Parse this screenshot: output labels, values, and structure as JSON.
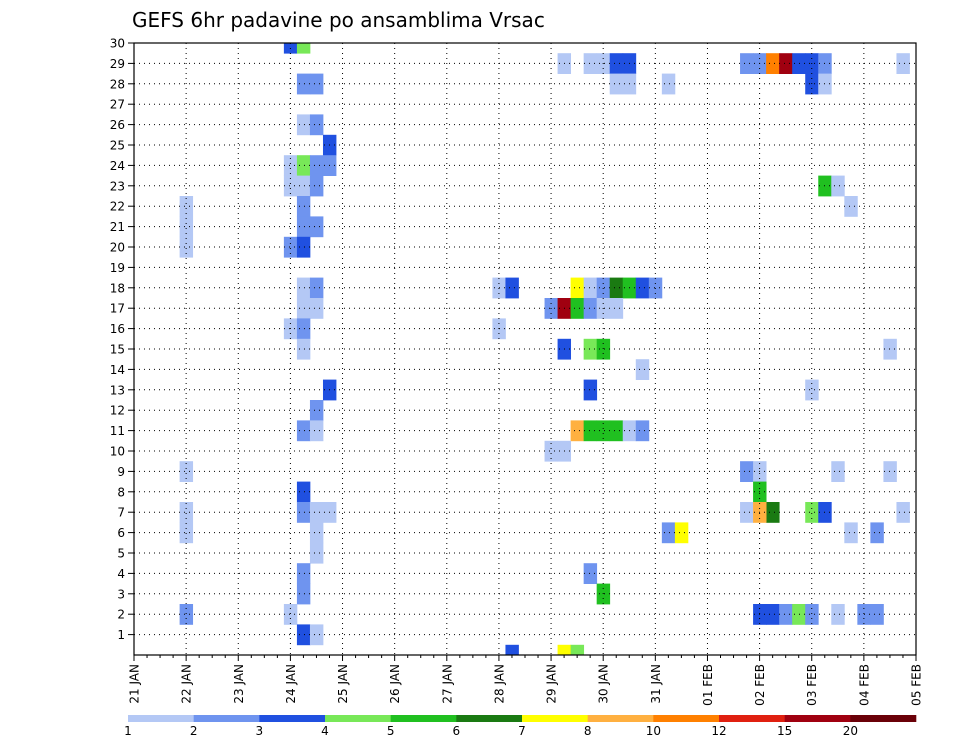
{
  "chart_data": {
    "type": "heatmap",
    "title": "GEFS 6hr padavine po ansamblima Vrsac",
    "xlabel": "",
    "ylabel": "",
    "x_start": "21 JAN",
    "x_step_hours": 6,
    "x_ticks": [
      "21 JAN",
      "22 JAN",
      "23 JAN",
      "24 JAN",
      "25 JAN",
      "26 JAN",
      "27 JAN",
      "28 JAN",
      "29 JAN",
      "30 JAN",
      "31 JAN",
      "01 FEB",
      "02 FEB",
      "03 FEB",
      "04 FEB",
      "05 FEB"
    ],
    "y_ticks": [
      "1",
      "2",
      "3",
      "4",
      "5",
      "6",
      "7",
      "8",
      "9",
      "10",
      "11",
      "12",
      "13",
      "14",
      "15",
      "16",
      "17",
      "18",
      "19",
      "20",
      "21",
      "22",
      "23",
      "24",
      "25",
      "26",
      "27",
      "28",
      "29",
      "30"
    ],
    "ylim": [
      0,
      30
    ],
    "grid": true,
    "legend": {
      "placement": "bottom",
      "labels": [
        "1",
        "2",
        "3",
        "4",
        "5",
        "6",
        "7",
        "8",
        "10",
        "12",
        "15",
        "20"
      ],
      "colors": [
        "#b4c8f5",
        "#6f94ef",
        "#2050e0",
        "#78e858",
        "#20c020",
        "#1a7a12",
        "#ffff00",
        "#ffb040",
        "#ff8000",
        "#e02010",
        "#a00010",
        "#6a0008"
      ]
    },
    "cells": [
      {
        "x": "24 JAN 00",
        "member": 30,
        "bin": 3
      },
      {
        "x": "24 JAN 06",
        "member": 30,
        "bin": 4
      },
      {
        "x": "29 JAN 06",
        "member": 29,
        "bin": 1
      },
      {
        "x": "29 JAN 18",
        "member": 29,
        "bin": 1
      },
      {
        "x": "30 JAN 00",
        "member": 29,
        "bin": 1
      },
      {
        "x": "30 JAN 06",
        "member": 29,
        "bin": 3
      },
      {
        "x": "30 JAN 12",
        "member": 29,
        "bin": 3
      },
      {
        "x": "01 FEB 18",
        "member": 29,
        "bin": 2
      },
      {
        "x": "02 FEB 00",
        "member": 29,
        "bin": 2
      },
      {
        "x": "02 FEB 06",
        "member": 29,
        "bin": 9
      },
      {
        "x": "02 FEB 12",
        "member": 29,
        "bin": 11
      },
      {
        "x": "02 FEB 18",
        "member": 29,
        "bin": 3
      },
      {
        "x": "03 FEB 00",
        "member": 29,
        "bin": 3
      },
      {
        "x": "03 FEB 06",
        "member": 29,
        "bin": 2
      },
      {
        "x": "04 FEB 18",
        "member": 29,
        "bin": 1
      },
      {
        "x": "24 JAN 06",
        "member": 28,
        "bin": 2
      },
      {
        "x": "24 JAN 12",
        "member": 28,
        "bin": 2
      },
      {
        "x": "30 JAN 06",
        "member": 28,
        "bin": 1
      },
      {
        "x": "30 JAN 12",
        "member": 28,
        "bin": 1
      },
      {
        "x": "31 JAN 06",
        "member": 28,
        "bin": 1
      },
      {
        "x": "03 FEB 00",
        "member": 28,
        "bin": 3
      },
      {
        "x": "03 FEB 06",
        "member": 28,
        "bin": 1
      },
      {
        "x": "24 JAN 06",
        "member": 26,
        "bin": 1
      },
      {
        "x": "24 JAN 12",
        "member": 26,
        "bin": 2
      },
      {
        "x": "24 JAN 18",
        "member": 25,
        "bin": 3
      },
      {
        "x": "24 JAN 00",
        "member": 24,
        "bin": 1
      },
      {
        "x": "24 JAN 06",
        "member": 24,
        "bin": 4
      },
      {
        "x": "24 JAN 12",
        "member": 24,
        "bin": 2
      },
      {
        "x": "24 JAN 18",
        "member": 24,
        "bin": 2
      },
      {
        "x": "24 JAN 00",
        "member": 23,
        "bin": 1
      },
      {
        "x": "24 JAN 06",
        "member": 23,
        "bin": 1
      },
      {
        "x": "24 JAN 12",
        "member": 23,
        "bin": 2
      },
      {
        "x": "03 FEB 06",
        "member": 23,
        "bin": 5
      },
      {
        "x": "03 FEB 12",
        "member": 23,
        "bin": 1
      },
      {
        "x": "22 JAN 00",
        "member": 22,
        "bin": 1
      },
      {
        "x": "24 JAN 06",
        "member": 22,
        "bin": 2
      },
      {
        "x": "03 FEB 18",
        "member": 22,
        "bin": 1
      },
      {
        "x": "22 JAN 00",
        "member": 21,
        "bin": 1
      },
      {
        "x": "24 JAN 06",
        "member": 21,
        "bin": 2
      },
      {
        "x": "24 JAN 12",
        "member": 21,
        "bin": 2
      },
      {
        "x": "22 JAN 00",
        "member": 20,
        "bin": 1
      },
      {
        "x": "24 JAN 00",
        "member": 20,
        "bin": 2
      },
      {
        "x": "24 JAN 06",
        "member": 20,
        "bin": 3
      },
      {
        "x": "28 JAN 00",
        "member": 18,
        "bin": 1
      },
      {
        "x": "28 JAN 06",
        "member": 18,
        "bin": 3
      },
      {
        "x": "24 JAN 06",
        "member": 18,
        "bin": 1
      },
      {
        "x": "24 JAN 12",
        "member": 18,
        "bin": 2
      },
      {
        "x": "29 JAN 12",
        "member": 18,
        "bin": 7
      },
      {
        "x": "29 JAN 18",
        "member": 18,
        "bin": 1
      },
      {
        "x": "30 JAN 00",
        "member": 18,
        "bin": 2
      },
      {
        "x": "30 JAN 06",
        "member": 18,
        "bin": 6
      },
      {
        "x": "30 JAN 12",
        "member": 18,
        "bin": 5
      },
      {
        "x": "30 JAN 18",
        "member": 18,
        "bin": 3
      },
      {
        "x": "31 JAN 00",
        "member": 18,
        "bin": 2
      },
      {
        "x": "24 JAN 06",
        "member": 17,
        "bin": 1
      },
      {
        "x": "24 JAN 12",
        "member": 17,
        "bin": 1
      },
      {
        "x": "29 JAN 00",
        "member": 17,
        "bin": 2
      },
      {
        "x": "29 JAN 06",
        "member": 17,
        "bin": 11
      },
      {
        "x": "29 JAN 12",
        "member": 17,
        "bin": 5
      },
      {
        "x": "29 JAN 18",
        "member": 17,
        "bin": 2
      },
      {
        "x": "30 JAN 00",
        "member": 17,
        "bin": 1
      },
      {
        "x": "30 JAN 06",
        "member": 17,
        "bin": 1
      },
      {
        "x": "24 JAN 00",
        "member": 16,
        "bin": 1
      },
      {
        "x": "24 JAN 06",
        "member": 16,
        "bin": 2
      },
      {
        "x": "28 JAN 00",
        "member": 16,
        "bin": 1
      },
      {
        "x": "24 JAN 06",
        "member": 15,
        "bin": 1
      },
      {
        "x": "29 JAN 06",
        "member": 15,
        "bin": 3
      },
      {
        "x": "29 JAN 18",
        "member": 15,
        "bin": 4
      },
      {
        "x": "30 JAN 00",
        "member": 15,
        "bin": 5
      },
      {
        "x": "04 FEB 12",
        "member": 15,
        "bin": 1
      },
      {
        "x": "30 JAN 18",
        "member": 14,
        "bin": 1
      },
      {
        "x": "24 JAN 18",
        "member": 13,
        "bin": 3
      },
      {
        "x": "29 JAN 18",
        "member": 13,
        "bin": 3
      },
      {
        "x": "03 FEB 00",
        "member": 13,
        "bin": 1
      },
      {
        "x": "24 JAN 12",
        "member": 12,
        "bin": 2
      },
      {
        "x": "24 JAN 06",
        "member": 11,
        "bin": 2
      },
      {
        "x": "24 JAN 12",
        "member": 11,
        "bin": 1
      },
      {
        "x": "29 JAN 12",
        "member": 11,
        "bin": 8
      },
      {
        "x": "29 JAN 18",
        "member": 11,
        "bin": 5
      },
      {
        "x": "30 JAN 00",
        "member": 11,
        "bin": 5
      },
      {
        "x": "30 JAN 06",
        "member": 11,
        "bin": 5
      },
      {
        "x": "30 JAN 12",
        "member": 11,
        "bin": 1
      },
      {
        "x": "30 JAN 18",
        "member": 11,
        "bin": 2
      },
      {
        "x": "29 JAN 00",
        "member": 10,
        "bin": 1
      },
      {
        "x": "29 JAN 06",
        "member": 10,
        "bin": 1
      },
      {
        "x": "22 JAN 00",
        "member": 9,
        "bin": 1
      },
      {
        "x": "01 FEB 18",
        "member": 9,
        "bin": 2
      },
      {
        "x": "02 FEB 00",
        "member": 9,
        "bin": 1
      },
      {
        "x": "03 FEB 12",
        "member": 9,
        "bin": 1
      },
      {
        "x": "04 FEB 12",
        "member": 9,
        "bin": 1
      },
      {
        "x": "24 JAN 06",
        "member": 8,
        "bin": 3
      },
      {
        "x": "02 FEB 00",
        "member": 8,
        "bin": 5
      },
      {
        "x": "22 JAN 00",
        "member": 7,
        "bin": 1
      },
      {
        "x": "24 JAN 06",
        "member": 7,
        "bin": 2
      },
      {
        "x": "24 JAN 12",
        "member": 7,
        "bin": 1
      },
      {
        "x": "24 JAN 18",
        "member": 7,
        "bin": 1
      },
      {
        "x": "01 FEB 18",
        "member": 7,
        "bin": 1
      },
      {
        "x": "02 FEB 06",
        "member": 7,
        "bin": 6
      },
      {
        "x": "02 FEB 00",
        "member": 7,
        "bin": 8
      },
      {
        "x": "03 FEB 00",
        "member": 7,
        "bin": 4
      },
      {
        "x": "03 FEB 06",
        "member": 7,
        "bin": 3
      },
      {
        "x": "04 FEB 18",
        "member": 7,
        "bin": 1
      },
      {
        "x": "22 JAN 00",
        "member": 6,
        "bin": 1
      },
      {
        "x": "24 JAN 12",
        "member": 6,
        "bin": 1
      },
      {
        "x": "31 JAN 06",
        "member": 6,
        "bin": 2
      },
      {
        "x": "31 JAN 12",
        "member": 6,
        "bin": 7
      },
      {
        "x": "03 FEB 18",
        "member": 6,
        "bin": 1
      },
      {
        "x": "04 FEB 06",
        "member": 6,
        "bin": 2
      },
      {
        "x": "24 JAN 12",
        "member": 5,
        "bin": 1
      },
      {
        "x": "24 JAN 06",
        "member": 4,
        "bin": 2
      },
      {
        "x": "29 JAN 18",
        "member": 4,
        "bin": 2
      },
      {
        "x": "24 JAN 06",
        "member": 3,
        "bin": 2
      },
      {
        "x": "30 JAN 00",
        "member": 3,
        "bin": 5
      },
      {
        "x": "22 JAN 00",
        "member": 2,
        "bin": 2
      },
      {
        "x": "24 JAN 00",
        "member": 2,
        "bin": 1
      },
      {
        "x": "02 FEB 00",
        "member": 2,
        "bin": 3
      },
      {
        "x": "02 FEB 06",
        "member": 2,
        "bin": 3
      },
      {
        "x": "02 FEB 12",
        "member": 2,
        "bin": 2
      },
      {
        "x": "02 FEB 18",
        "member": 2,
        "bin": 4
      },
      {
        "x": "03 FEB 00",
        "member": 2,
        "bin": 2
      },
      {
        "x": "03 FEB 12",
        "member": 2,
        "bin": 1
      },
      {
        "x": "04 FEB 00",
        "member": 2,
        "bin": 2
      },
      {
        "x": "04 FEB 06",
        "member": 2,
        "bin": 2
      },
      {
        "x": "24 JAN 06",
        "member": 1,
        "bin": 3
      },
      {
        "x": "24 JAN 12",
        "member": 1,
        "bin": 1
      },
      {
        "x": "28 JAN 06",
        "member": 0,
        "bin": 3
      },
      {
        "x": "29 JAN 06",
        "member": 0,
        "bin": 7
      },
      {
        "x": "29 JAN 12",
        "member": 0,
        "bin": 4
      }
    ]
  }
}
